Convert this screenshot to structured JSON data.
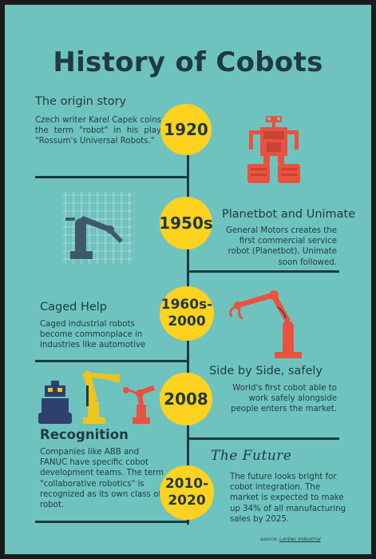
{
  "title": "History of Cobots",
  "sections": [
    {
      "heading": "The origin story",
      "body": "Czech writer Karel Capek coins the term \"robot\" in his play \"Rossum's Universal Robots.\"",
      "era": "1920"
    },
    {
      "heading": "Planetbot and Unimate",
      "body": "General Motors creates the first commercial service robot (Planetbot). Unimate soon followed.",
      "era": "1950s"
    },
    {
      "heading": "Caged Help",
      "body": "Caged industrial robots become commonplace in industries like automotive",
      "era_line1": "1960s-",
      "era_line2": "2000"
    },
    {
      "heading": "Side by Side, safely",
      "body": "World's first cobot able to work safely alongside people enters the market.",
      "era": "2008"
    },
    {
      "heading": "Recognition",
      "body": "Companies like ABB and FANUC have specific cobot development teams.  The term \"collaborative robotics\" is recognized as its own class of robot.",
      "era_line1": "2010-",
      "era_line2": "2020"
    },
    {
      "heading": "The Future",
      "body": "The future looks bright for cobot integration.  The market is expected to make up 34% of all manufacturing sales by 2025."
    }
  ],
  "source_label": "source:",
  "source_name": "Lanbec Industrial",
  "colors": {
    "background": "#6fc3bf",
    "text": "#1f3a44",
    "badge": "#ffd21f",
    "robot_red": "#e8523f",
    "robot_navy": "#2f3f6e",
    "robot_yellow": "#f0c419"
  },
  "icons": [
    "robot-1920-icon",
    "robot-arm-blueprint-icon",
    "robot-arm-red-icon",
    "robot-group-icon"
  ]
}
